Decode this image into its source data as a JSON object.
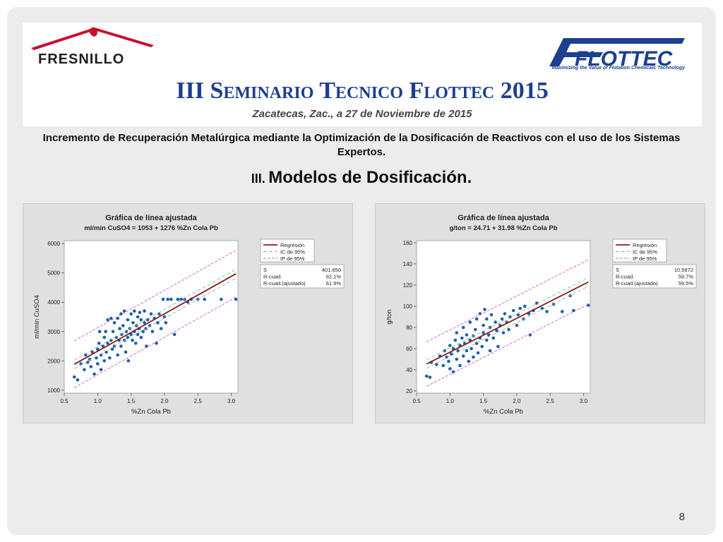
{
  "header": {
    "fresnillo_logo_text": "FRESNILLO",
    "flottec_logo_text": "FLOTTEC",
    "flottec_tagline": "Maximizing the Value of Flotation Chemicals Technology",
    "seminar_title": "III Seminario Tecnico Flottec 2015",
    "seminar_date": "Zacatecas, Zac., a 27 de Noviembre de 2015"
  },
  "slide": {
    "subtitle": "Incremento de Recuperación Metalúrgica mediante la Optimización de la Dosificación de Reactivos con el uso de los Sistemas Expertos.",
    "section_number": "III.",
    "section_text": "Modelos de Dosificación.",
    "page_number": "8"
  },
  "colors": {
    "title_blue": "#1c3f8f",
    "fresnillo_red": "#c8102e",
    "points": "#1f5fa8",
    "regression": "#8b1a1a",
    "ci": "#7fbf9f",
    "pi": "#d65bd0"
  },
  "chart_data": [
    {
      "type": "scatter",
      "title": "Gráfica de línea ajustada",
      "subtitle": "ml/min CuSO4 = 1053 + 1276 %Zn Cola Pb",
      "xlabel": "%Zn Cola Pb",
      "ylabel": "ml/min CuSO4",
      "xlim": [
        0.5,
        3.1
      ],
      "ylim": [
        900,
        6100
      ],
      "xticks": [
        "0.5",
        "1.0",
        "1.5",
        "2.0",
        "2.5",
        "3.0"
      ],
      "yticks": [
        "1000",
        "2000",
        "3000",
        "4000",
        "5000",
        "6000"
      ],
      "intercept": 1053,
      "slope": 1276,
      "ci_halfwidth": 150,
      "pi_halfwidth": 800,
      "legend": [
        "Regresión",
        "IC de 95%",
        "IP de 95%"
      ],
      "legend_position": "right",
      "stats": [
        {
          "label": "S",
          "value": "401.650"
        },
        {
          "label": "R-cuad.",
          "value": "62.1%"
        },
        {
          "label": "R-cuad.(ajustado)",
          "value": "61.9%"
        }
      ],
      "points": [
        [
          0.65,
          1450
        ],
        [
          0.7,
          1350
        ],
        [
          0.75,
          1900
        ],
        [
          0.8,
          1700
        ],
        [
          0.82,
          2200
        ],
        [
          0.85,
          1950
        ],
        [
          0.88,
          2050
        ],
        [
          0.9,
          1800
        ],
        [
          0.92,
          2300
        ],
        [
          0.95,
          1550
        ],
        [
          0.98,
          2100
        ],
        [
          1.0,
          2400
        ],
        [
          1.0,
          1900
        ],
        [
          1.02,
          2600
        ],
        [
          1.03,
          3000
        ],
        [
          1.05,
          2200
        ],
        [
          1.05,
          1700
        ],
        [
          1.08,
          2500
        ],
        [
          1.1,
          2000
        ],
        [
          1.1,
          2800
        ],
        [
          1.12,
          3000
        ],
        [
          1.13,
          2300
        ],
        [
          1.15,
          2600
        ],
        [
          1.15,
          3400
        ],
        [
          1.18,
          2100
        ],
        [
          1.2,
          2700
        ],
        [
          1.2,
          3450
        ],
        [
          1.22,
          2400
        ],
        [
          1.23,
          3000
        ],
        [
          1.25,
          2500
        ],
        [
          1.25,
          3300
        ],
        [
          1.28,
          2800
        ],
        [
          1.3,
          2200
        ],
        [
          1.3,
          3450
        ],
        [
          1.32,
          2700
        ],
        [
          1.33,
          3100
        ],
        [
          1.35,
          2500
        ],
        [
          1.35,
          3600
        ],
        [
          1.36,
          2900
        ],
        [
          1.38,
          3200
        ],
        [
          1.4,
          2700
        ],
        [
          1.4,
          3700
        ],
        [
          1.42,
          2300
        ],
        [
          1.43,
          3000
        ],
        [
          1.45,
          2800
        ],
        [
          1.45,
          3400
        ],
        [
          1.46,
          2000
        ],
        [
          1.48,
          3100
        ],
        [
          1.5,
          2900
        ],
        [
          1.5,
          3600
        ],
        [
          1.52,
          2700
        ],
        [
          1.53,
          3300
        ],
        [
          1.55,
          3000
        ],
        [
          1.55,
          3700
        ],
        [
          1.57,
          2600
        ],
        [
          1.58,
          3200
        ],
        [
          1.6,
          2900
        ],
        [
          1.6,
          3500
        ],
        [
          1.62,
          3100
        ],
        [
          1.63,
          3650
        ],
        [
          1.65,
          2800
        ],
        [
          1.65,
          3400
        ],
        [
          1.68,
          3000
        ],
        [
          1.7,
          3300
        ],
        [
          1.7,
          3700
        ],
        [
          1.72,
          3100
        ],
        [
          1.73,
          2500
        ],
        [
          1.75,
          3400
        ],
        [
          1.78,
          3200
        ],
        [
          1.8,
          3600
        ],
        [
          1.82,
          3000
        ],
        [
          1.85,
          3450
        ],
        [
          1.88,
          2600
        ],
        [
          1.9,
          3300
        ],
        [
          1.92,
          3600
        ],
        [
          1.95,
          3100
        ],
        [
          1.98,
          4100
        ],
        [
          2.0,
          3500
        ],
        [
          2.02,
          3300
        ],
        [
          2.05,
          4100
        ],
        [
          2.1,
          4100
        ],
        [
          2.15,
          2900
        ],
        [
          2.2,
          4100
        ],
        [
          2.25,
          4100
        ],
        [
          2.3,
          4100
        ],
        [
          2.35,
          4000
        ],
        [
          2.4,
          4100
        ],
        [
          2.5,
          4100
        ],
        [
          2.6,
          4100
        ],
        [
          2.85,
          4100
        ],
        [
          3.07,
          4100
        ]
      ]
    },
    {
      "type": "scatter",
      "title": "Gráfica de línea ajustada",
      "subtitle": "g/ton = 24.71 + 31.98 %Zn Cola Pb",
      "xlabel": "%Zn Cola Pb",
      "ylabel": "g/ton",
      "xlim": [
        0.5,
        3.1
      ],
      "ylim": [
        18,
        162
      ],
      "xticks": [
        "0.5",
        "1.0",
        "1.5",
        "2.0",
        "2.5",
        "3.0"
      ],
      "yticks": [
        "20",
        "40",
        "60",
        "80",
        "100",
        "120",
        "140",
        "160"
      ],
      "intercept": 24.71,
      "slope": 31.98,
      "ci_halfwidth": 4,
      "pi_halfwidth": 21,
      "legend": [
        "Regresión",
        "IC de 95%",
        "IP de 95%"
      ],
      "legend_position": "right",
      "stats": [
        {
          "label": "S",
          "value": "10.5872"
        },
        {
          "label": "R-cuad.",
          "value": "59.7%"
        },
        {
          "label": "R-cuad.(ajustado)",
          "value": "59.5%"
        }
      ],
      "points": [
        [
          0.65,
          34
        ],
        [
          0.7,
          33
        ],
        [
          0.72,
          47
        ],
        [
          0.8,
          45
        ],
        [
          0.85,
          53
        ],
        [
          0.9,
          44
        ],
        [
          0.92,
          58
        ],
        [
          0.95,
          52
        ],
        [
          0.98,
          48
        ],
        [
          1.0,
          63
        ],
        [
          1.0,
          41
        ],
        [
          1.02,
          55
        ],
        [
          1.05,
          60
        ],
        [
          1.05,
          38
        ],
        [
          1.08,
          68
        ],
        [
          1.1,
          50
        ],
        [
          1.1,
          75
        ],
        [
          1.12,
          58
        ],
        [
          1.15,
          63
        ],
        [
          1.15,
          44
        ],
        [
          1.18,
          70
        ],
        [
          1.2,
          53
        ],
        [
          1.2,
          80
        ],
        [
          1.22,
          65
        ],
        [
          1.25,
          58
        ],
        [
          1.25,
          73
        ],
        [
          1.28,
          48
        ],
        [
          1.3,
          68
        ],
        [
          1.3,
          85
        ],
        [
          1.32,
          60
        ],
        [
          1.35,
          72
        ],
        [
          1.35,
          52
        ],
        [
          1.38,
          78
        ],
        [
          1.4,
          65
        ],
        [
          1.4,
          88
        ],
        [
          1.42,
          56
        ],
        [
          1.45,
          70
        ],
        [
          1.45,
          93
        ],
        [
          1.48,
          62
        ],
        [
          1.5,
          75
        ],
        [
          1.5,
          82
        ],
        [
          1.52,
          97
        ],
        [
          1.55,
          68
        ],
        [
          1.55,
          88
        ],
        [
          1.58,
          73
        ],
        [
          1.6,
          80
        ],
        [
          1.6,
          58
        ],
        [
          1.62,
          92
        ],
        [
          1.65,
          70
        ],
        [
          1.68,
          85
        ],
        [
          1.7,
          77
        ],
        [
          1.72,
          62
        ],
        [
          1.75,
          82
        ],
        [
          1.78,
          88
        ],
        [
          1.8,
          75
        ],
        [
          1.82,
          93
        ],
        [
          1.85,
          85
        ],
        [
          1.88,
          78
        ],
        [
          1.9,
          90
        ],
        [
          1.95,
          96
        ],
        [
          2.0,
          82
        ],
        [
          2.02,
          92
        ],
        [
          2.05,
          98
        ],
        [
          2.1,
          88
        ],
        [
          2.12,
          100
        ],
        [
          2.18,
          93
        ],
        [
          2.2,
          73
        ],
        [
          2.25,
          96
        ],
        [
          2.3,
          103
        ],
        [
          2.38,
          98
        ],
        [
          2.45,
          95
        ],
        [
          2.55,
          102
        ],
        [
          2.68,
          95
        ],
        [
          2.8,
          110
        ],
        [
          2.85,
          96
        ],
        [
          3.07,
          101
        ]
      ]
    }
  ]
}
